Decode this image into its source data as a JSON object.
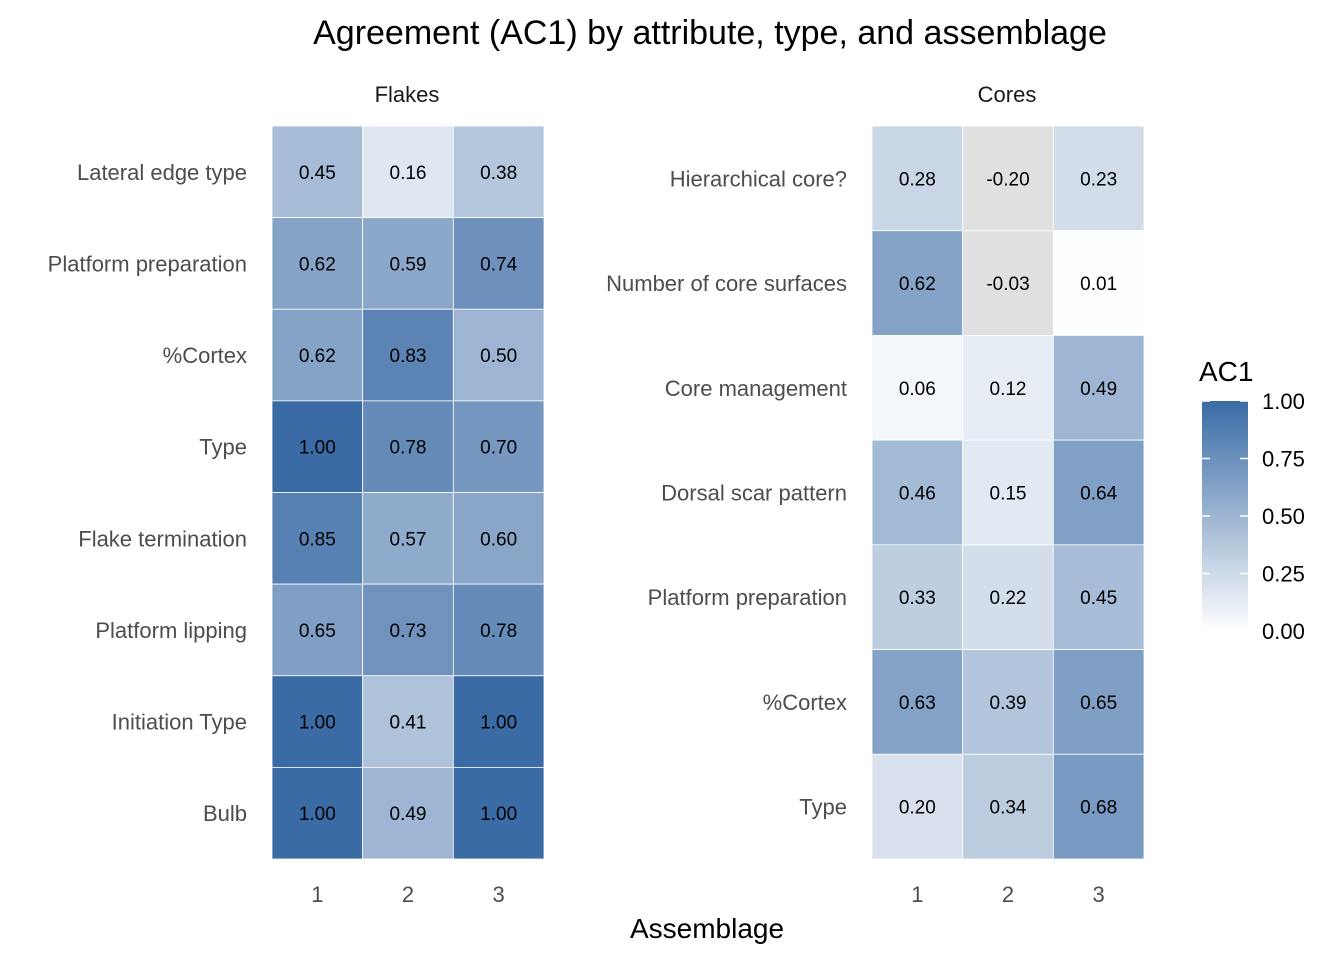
{
  "chart_data": {
    "type": "heatmap",
    "title": "Agreement (AC1) by attribute, type, and assemblage",
    "xlabel": "Assemblage",
    "ylabel": "",
    "columns": [
      "1",
      "2",
      "3"
    ],
    "panels": [
      {
        "name": "Flakes",
        "rows": [
          "Lateral edge type",
          "Platform preparation",
          "%Cortex",
          "Type",
          "Flake termination",
          "Platform lipping",
          "Initiation Type",
          "Bulb"
        ],
        "values": [
          [
            0.45,
            0.16,
            0.38
          ],
          [
            0.62,
            0.59,
            0.74
          ],
          [
            0.62,
            0.83,
            0.5
          ],
          [
            1.0,
            0.78,
            0.7
          ],
          [
            0.85,
            0.57,
            0.6
          ],
          [
            0.65,
            0.73,
            0.78
          ],
          [
            1.0,
            0.41,
            1.0
          ],
          [
            1.0,
            0.49,
            1.0
          ]
        ]
      },
      {
        "name": "Cores",
        "rows": [
          "Hierarchical core?",
          "Number of core surfaces",
          "Core management",
          "Dorsal scar pattern",
          "Platform preparation",
          "%Cortex",
          "Type"
        ],
        "values": [
          [
            0.28,
            -0.2,
            0.23
          ],
          [
            0.62,
            -0.03,
            0.01
          ],
          [
            0.06,
            0.12,
            0.49
          ],
          [
            0.46,
            0.15,
            0.64
          ],
          [
            0.33,
            0.22,
            0.45
          ],
          [
            0.63,
            0.39,
            0.65
          ],
          [
            0.2,
            0.34,
            0.68
          ]
        ]
      }
    ],
    "legend": {
      "title": "AC1",
      "ticks": [
        "1.00",
        "0.75",
        "0.50",
        "0.25",
        "0.00"
      ],
      "range": [
        0,
        1
      ],
      "position": "right"
    },
    "colors": {
      "low": "#ffffff",
      "high": "#3a6ba5",
      "na_below_range": "#e0e0e0"
    },
    "grid": false
  }
}
